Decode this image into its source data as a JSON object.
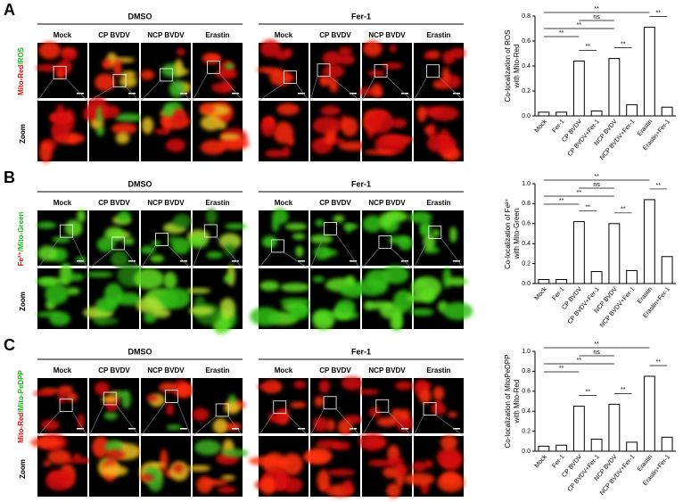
{
  "panels": [
    {
      "letter": "A",
      "row_label": [
        {
          "text": "Mito-Red",
          "color": "#e01010"
        },
        {
          "text": "/ROS",
          "color": "#18b818"
        }
      ],
      "zoom_label": "Zoom",
      "groups": [
        {
          "name": "DMSO",
          "columns": [
            "Mock",
            "CP BVDV",
            "NCP BVDV",
            "Erastin"
          ]
        },
        {
          "name": "Fer-1",
          "columns": [
            "Mock",
            "CP BVDV",
            "NCP BVDV",
            "Erastin"
          ]
        }
      ]
    },
    {
      "letter": "B",
      "row_label": [
        {
          "text": "Fe²⁺",
          "color": "#e01010"
        },
        {
          "text": "/Mito-Green",
          "color": "#18b818"
        }
      ],
      "zoom_label": "Zoom",
      "groups": [
        {
          "name": "DMSO",
          "columns": [
            "Mock",
            "CP BVDV",
            "NCP BVDV",
            "Erastin"
          ]
        },
        {
          "name": "Fer-1",
          "columns": [
            "Mock",
            "CP BVDV",
            "NCP BVDV",
            "Erastin"
          ]
        }
      ]
    },
    {
      "letter": "C",
      "row_label": [
        {
          "text": "Mito-Red",
          "color": "#e01010"
        },
        {
          "text": "/Mito-PeDPP",
          "color": "#18b818"
        }
      ],
      "zoom_label": "Zoom",
      "groups": [
        {
          "name": "DMSO",
          "columns": [
            "Mock",
            "CP BVDV",
            "NCP BVDV",
            "Erastin"
          ]
        },
        {
          "name": "Fer-1",
          "columns": [
            "Mock",
            "CP BVDV",
            "NCP BVDV",
            "Erastin"
          ]
        }
      ]
    }
  ],
  "chart_data": [
    {
      "type": "bar",
      "ylabel": [
        "Co-localization of ROS",
        "with Mito-Red"
      ],
      "categories": [
        "Mock",
        "Fer-1",
        "CP BVDV",
        "CP BVDV+Fer-1",
        "NCP BVDV",
        "NCP BVDV+Fer-1",
        "Erastin",
        "Erastin+Fer-1"
      ],
      "values": [
        0.03,
        0.03,
        0.44,
        0.04,
        0.46,
        0.09,
        0.71,
        0.07
      ],
      "ylim": [
        0,
        0.8
      ],
      "yticks": [
        {
          "value": 0,
          "label": "0.0"
        },
        0.2,
        0.4,
        0.6,
        0.8
      ],
      "comparisons": [
        {
          "pair": [
            0,
            6
          ],
          "label": "**"
        },
        {
          "pair": [
            2,
            4
          ],
          "label": "ns"
        },
        {
          "pair": [
            0,
            4
          ],
          "label": "**"
        },
        {
          "pair": [
            0,
            2
          ],
          "label": "**"
        },
        {
          "pair": [
            2,
            3
          ],
          "label": "**"
        },
        {
          "pair": [
            4,
            5
          ],
          "label": "**"
        },
        {
          "pair": [
            6,
            7
          ],
          "label": "**"
        }
      ]
    },
    {
      "type": "bar",
      "ylabel": [
        "Co-localization of Fe²⁺",
        "with Mito-Green"
      ],
      "categories": [
        "Mock",
        "Fer-1",
        "CP BVDV",
        "CP BVDV+Fer-1",
        "NCP BVDV",
        "NCP BVDV+Fer-1",
        "Erastin",
        "Erastin+Fer-1"
      ],
      "values": [
        0.04,
        0.04,
        0.62,
        0.12,
        0.6,
        0.13,
        0.84,
        0.27
      ],
      "ylim": [
        0,
        1
      ],
      "yticks": [
        {
          "value": 0,
          "label": "0.0"
        },
        0.2,
        0.4,
        0.6,
        0.8,
        {
          "value": 1,
          "label": "1.0"
        }
      ],
      "comparisons": [
        {
          "pair": [
            0,
            6
          ],
          "label": "**"
        },
        {
          "pair": [
            2,
            4
          ],
          "label": "ns"
        },
        {
          "pair": [
            0,
            4
          ],
          "label": "**"
        },
        {
          "pair": [
            0,
            2
          ],
          "label": "**"
        },
        {
          "pair": [
            2,
            3
          ],
          "label": "**"
        },
        {
          "pair": [
            4,
            5
          ],
          "label": "**"
        },
        {
          "pair": [
            6,
            7
          ],
          "label": "**"
        }
      ]
    },
    {
      "type": "bar",
      "ylabel": [
        "Co-localization of MitoPeDPP",
        "with Mito-Red"
      ],
      "categories": [
        "Mock",
        "Fer-1",
        "CP BVDV",
        "CP BVDV+Fer-1",
        "NCP BVDV",
        "NCP BVDV+Fer-1",
        "Erastin",
        "Erastin+Fer-1"
      ],
      "values": [
        0.05,
        0.06,
        0.45,
        0.12,
        0.47,
        0.09,
        0.75,
        0.14
      ],
      "ylim": [
        0,
        1
      ],
      "yticks": [
        {
          "value": 0,
          "label": "0.0"
        },
        0.2,
        0.4,
        0.6,
        0.8,
        {
          "value": 1,
          "label": "1.0"
        }
      ],
      "comparisons": [
        {
          "pair": [
            0,
            6
          ],
          "label": "**"
        },
        {
          "pair": [
            2,
            4
          ],
          "label": "ns"
        },
        {
          "pair": [
            0,
            4
          ],
          "label": "**"
        },
        {
          "pair": [
            0,
            2
          ],
          "label": "**"
        },
        {
          "pair": [
            2,
            3
          ],
          "label": "**"
        },
        {
          "pair": [
            4,
            5
          ],
          "label": "**"
        },
        {
          "pair": [
            6,
            7
          ],
          "label": "**"
        }
      ]
    }
  ]
}
